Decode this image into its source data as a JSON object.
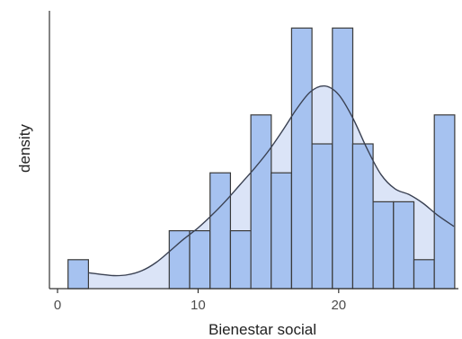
{
  "chart_data": {
    "type": "bar",
    "xlabel": "Bienestar social",
    "ylabel": "density",
    "xlim": [
      0,
      28.5
    ],
    "x_ticks": [
      0,
      10,
      20
    ],
    "y_ticks_shown": false,
    "grid": false,
    "bin_width": 1.45,
    "bins": [
      {
        "x0": 0.75,
        "x1": 2.2,
        "count": 1
      },
      {
        "x0": 7.95,
        "x1": 9.4,
        "count": 2
      },
      {
        "x0": 9.4,
        "x1": 10.85,
        "count": 2
      },
      {
        "x0": 10.85,
        "x1": 12.3,
        "count": 4
      },
      {
        "x0": 12.3,
        "x1": 13.75,
        "count": 2
      },
      {
        "x0": 13.75,
        "x1": 15.2,
        "count": 6
      },
      {
        "x0": 15.2,
        "x1": 16.65,
        "count": 4
      },
      {
        "x0": 16.65,
        "x1": 18.1,
        "count": 9
      },
      {
        "x0": 18.1,
        "x1": 19.55,
        "count": 5
      },
      {
        "x0": 19.55,
        "x1": 21.0,
        "count": 9
      },
      {
        "x0": 21.0,
        "x1": 22.45,
        "count": 5
      },
      {
        "x0": 22.45,
        "x1": 23.9,
        "count": 3
      },
      {
        "x0": 23.9,
        "x1": 25.35,
        "count": 3
      },
      {
        "x0": 25.35,
        "x1": 26.8,
        "count": 1
      },
      {
        "x0": 26.8,
        "x1": 28.25,
        "count": 6
      }
    ],
    "density_curve": {
      "x": [
        2.2,
        3,
        4,
        5,
        6,
        7,
        8,
        9,
        10,
        11,
        12,
        13,
        14,
        15,
        16,
        17,
        18,
        19,
        20,
        21,
        22,
        23,
        24,
        25,
        26,
        27,
        28.2
      ],
      "y": [
        0.55,
        0.5,
        0.45,
        0.48,
        0.62,
        0.9,
        1.3,
        1.72,
        2.1,
        2.55,
        3.05,
        3.6,
        4.15,
        4.75,
        5.45,
        6.2,
        6.8,
        7.0,
        6.7,
        5.9,
        4.85,
        3.95,
        3.45,
        3.25,
        2.95,
        2.55,
        2.15
      ]
    },
    "colors": {
      "bar_fill": "#a6c2f0",
      "bar_stroke": "#3a3a3a",
      "density_fill": "#dbe4f7",
      "density_stroke": "#3a4152",
      "axis": "#333333"
    }
  }
}
